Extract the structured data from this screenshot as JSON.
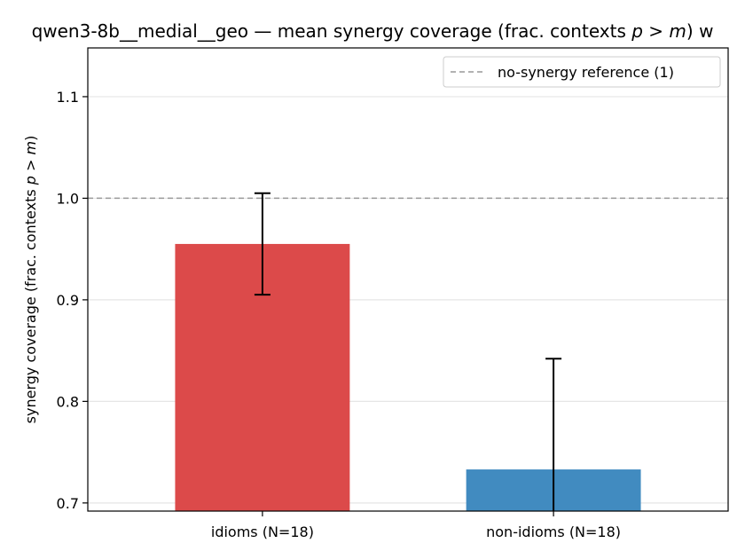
{
  "chart_data": {
    "type": "bar",
    "title": "qwen3-8b__medial__geo — mean synergy coverage  (frac. contexts p > m) w",
    "title_parts": [
      "qwen3-8b__medial__geo — mean synergy coverage  (frac. contexts ",
      "p",
      " > ",
      "m",
      ") w"
    ],
    "ylabel": "synergy coverage  (frac. contexts p > m)",
    "ylabel_parts": [
      "synergy coverage  (frac. contexts ",
      "p",
      " > ",
      "m",
      ")"
    ],
    "xlabel": "",
    "categories": [
      "idioms (N=18)",
      "non-idioms (N=18)"
    ],
    "values": [
      0.955,
      0.733
    ],
    "errors": [
      0.05,
      0.109
    ],
    "colors": [
      "#dc4a4a",
      "#418bc0"
    ],
    "ylim": [
      0.692,
      1.148
    ],
    "yticks": [
      0.7,
      0.8,
      0.9,
      1.0,
      1.1
    ],
    "grid": "y",
    "reference_line": {
      "value": 1.0,
      "label": "no-synergy reference (1)",
      "color": "#999999"
    },
    "legend_position": "top-right"
  }
}
